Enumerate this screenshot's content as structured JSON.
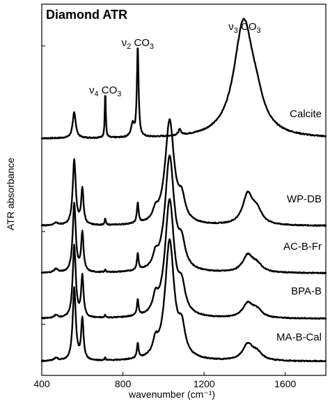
{
  "chart_data": {
    "type": "line",
    "title": "Diamond ATR",
    "xlabel": "wavenumber (cm⁻¹)",
    "ylabel": "ATR absorbance",
    "xlim": [
      400,
      1800
    ],
    "xticks": [
      400,
      800,
      1200,
      1600
    ],
    "yticks_unlabeled": true,
    "grid": false,
    "annotations": [
      {
        "nu": "ν",
        "sub": "4",
        "text": "CO",
        "sub2": "3",
        "x": 713
      },
      {
        "nu": "ν",
        "sub": "2",
        "text": "CO",
        "sub2": "3",
        "x": 873
      },
      {
        "nu": "ν",
        "sub": "3",
        "text": "CO",
        "sub2": "3",
        "x": 1400
      }
    ],
    "series": [
      {
        "name": "Calcite",
        "baseline": 0.0,
        "noise": 0.006,
        "peaks": [
          [
            560,
            0.28,
            9
          ],
          [
            713,
            0.5,
            3
          ],
          [
            848,
            0.14,
            9
          ],
          [
            873,
            0.98,
            5
          ],
          [
            1080,
            0.06,
            8
          ],
          [
            1395,
            1.24,
            58
          ],
          [
            1460,
            0.18,
            40
          ]
        ]
      },
      {
        "name": "WP-DB",
        "baseline": -0.94,
        "noise": 0.005,
        "peaks": [
          [
            560,
            0.7,
            9
          ],
          [
            600,
            0.38,
            7
          ],
          [
            470,
            0.03,
            12
          ],
          [
            713,
            0.07,
            3
          ],
          [
            873,
            0.22,
            5
          ],
          [
            960,
            0.1,
            14
          ],
          [
            1030,
            1.12,
            27
          ],
          [
            1090,
            0.22,
            20
          ],
          [
            1415,
            0.32,
            30
          ],
          [
            1460,
            0.14,
            30
          ]
        ]
      },
      {
        "name": "AC-B-Fr",
        "baseline": -1.45,
        "noise": 0.005,
        "peaks": [
          [
            560,
            0.74,
            9
          ],
          [
            600,
            0.42,
            7
          ],
          [
            470,
            0.04,
            12
          ],
          [
            713,
            0.03,
            3
          ],
          [
            873,
            0.18,
            5
          ],
          [
            960,
            0.12,
            14
          ],
          [
            1030,
            1.24,
            27
          ],
          [
            1090,
            0.24,
            20
          ],
          [
            1415,
            0.18,
            30
          ],
          [
            1460,
            0.08,
            30
          ]
        ]
      },
      {
        "name": "BPA-B",
        "baseline": -1.94,
        "noise": 0.005,
        "peaks": [
          [
            560,
            0.78,
            9
          ],
          [
            600,
            0.44,
            7
          ],
          [
            470,
            0.03,
            12
          ],
          [
            713,
            0.03,
            3
          ],
          [
            873,
            0.17,
            5
          ],
          [
            960,
            0.16,
            14
          ],
          [
            1030,
            1.26,
            27
          ],
          [
            1090,
            0.26,
            20
          ],
          [
            1415,
            0.15,
            30
          ],
          [
            1460,
            0.08,
            30
          ]
        ]
      },
      {
        "name": "MA-B-Cal",
        "baseline": -2.4,
        "noise": 0.005,
        "peaks": [
          [
            560,
            0.78,
            9
          ],
          [
            600,
            0.44,
            7
          ],
          [
            470,
            0.03,
            12
          ],
          [
            713,
            0.03,
            3
          ],
          [
            873,
            0.16,
            5
          ],
          [
            960,
            0.14,
            14
          ],
          [
            1030,
            1.28,
            27
          ],
          [
            1090,
            0.28,
            20
          ],
          [
            1415,
            0.17,
            30
          ],
          [
            1460,
            0.08,
            30
          ]
        ]
      }
    ]
  }
}
